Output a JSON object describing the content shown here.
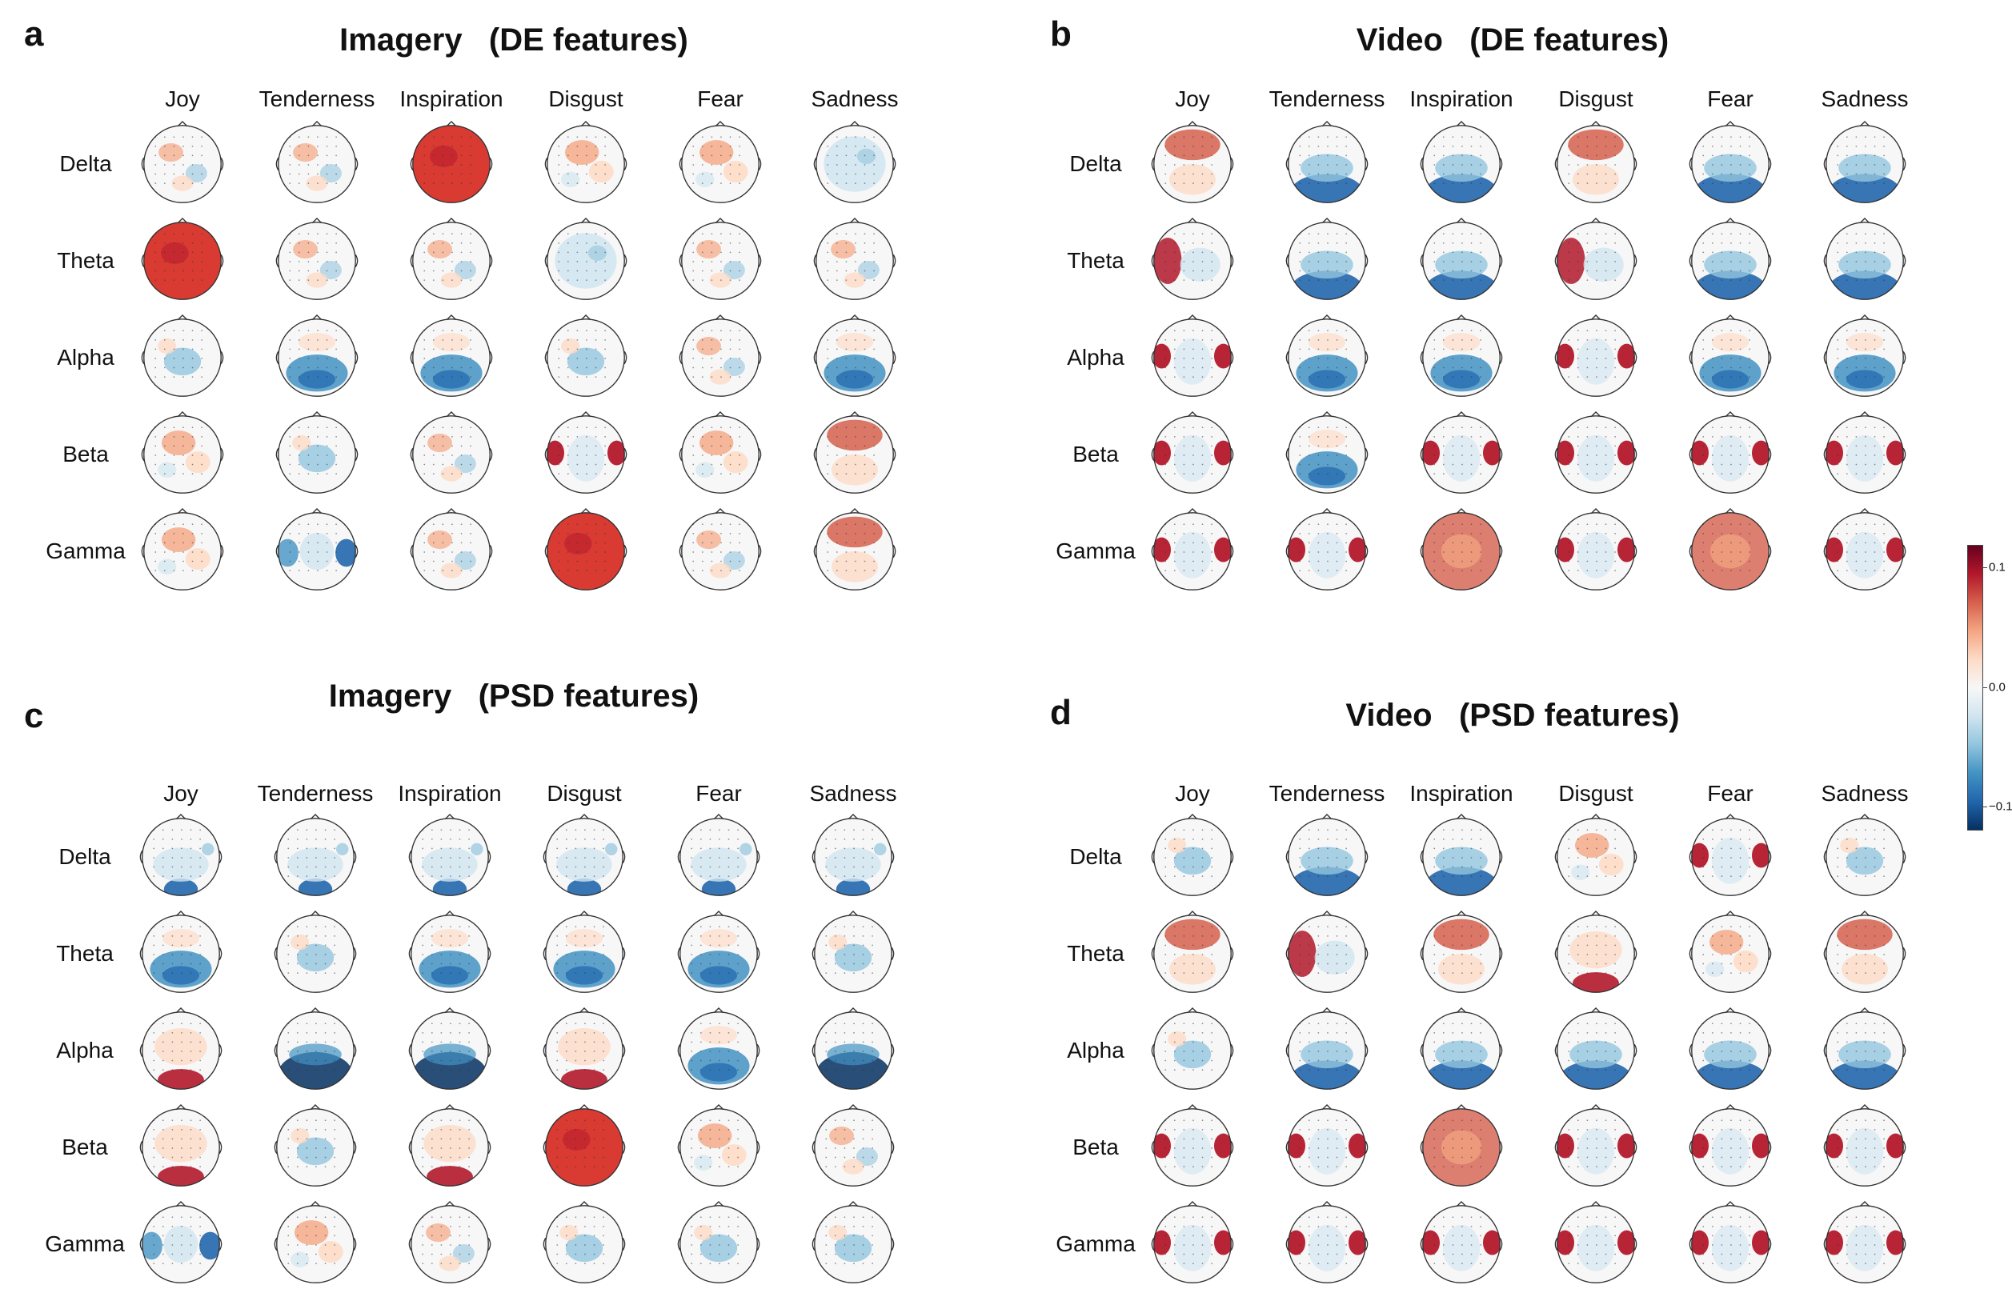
{
  "panels": [
    {
      "letter": "a",
      "title": "Imagery   (DE features)"
    },
    {
      "letter": "b",
      "title": "Video   (DE features)"
    },
    {
      "letter": "c",
      "title": "Imagery   (PSD features)"
    },
    {
      "letter": "d",
      "title": "Video   (PSD features)"
    }
  ],
  "emotions": [
    "Joy",
    "Tenderness",
    "Inspiration",
    "Disgust",
    "Fear",
    "Sadness"
  ],
  "bands": [
    "Delta",
    "Theta",
    "Alpha",
    "Beta",
    "Gamma"
  ],
  "colorbar": {
    "ticks": [
      "0.1",
      "0.0",
      "−0.1"
    ],
    "colors": [
      "#67001f",
      "#f7f7f7",
      "#053061"
    ]
  },
  "maps": [
    [
      [
        "mixed",
        "mixed",
        "strong-red",
        "mixed-red",
        "mixed-red",
        "light-blue"
      ],
      [
        "strong-red",
        "mixed",
        "mixed",
        "light-blue",
        "mixed",
        "mixed"
      ],
      [
        "mixed-blue",
        "blue-center",
        "blue-center",
        "mixed-blue",
        "mixed",
        "blue-center"
      ],
      [
        "mixed-red",
        "mixed-blue",
        "mixed",
        "red-temporal",
        "mixed-red",
        "red-top"
      ],
      [
        "mixed-red",
        "blue-temporal",
        "mixed",
        "strong-red",
        "mixed",
        "red-top"
      ]
    ],
    [
      [
        "red-top",
        "blue-bottom",
        "blue-bottom",
        "red-top",
        "blue-bottom",
        "blue-bottom"
      ],
      [
        "red-left",
        "blue-bottom",
        "blue-bottom",
        "red-left",
        "blue-bottom",
        "blue-bottom"
      ],
      [
        "red-temporal",
        "blue-center",
        "blue-center",
        "red-temporal",
        "blue-center",
        "blue-center"
      ],
      [
        "red-temporal",
        "blue-center",
        "red-temporal",
        "red-temporal",
        "red-temporal",
        "red-temporal"
      ],
      [
        "red-temporal",
        "red-temporal",
        "red-ring",
        "red-temporal",
        "red-ring",
        "red-temporal"
      ]
    ],
    [
      [
        "blue-occipital",
        "blue-occipital",
        "blue-occipital",
        "blue-occipital",
        "blue-occipital",
        "blue-occipital"
      ],
      [
        "blue-center",
        "mixed-blue",
        "blue-center",
        "blue-center",
        "blue-center",
        "mixed-blue"
      ],
      [
        "red-occipital",
        "dark-blue-bottom",
        "dark-blue-bottom",
        "red-occipital",
        "blue-center",
        "dark-blue-bottom"
      ],
      [
        "red-occipital",
        "mixed-blue",
        "red-occipital",
        "strong-red",
        "mixed-red",
        "mixed"
      ],
      [
        "blue-temporal",
        "mixed-red",
        "mixed",
        "mixed-blue",
        "mixed-blue",
        "mixed-blue"
      ]
    ],
    [
      [
        "mixed-blue",
        "blue-bottom",
        "blue-bottom",
        "mixed-red",
        "red-temporal",
        "mixed-blue"
      ],
      [
        "red-top",
        "red-left",
        "red-top",
        "red-occipital",
        "mixed-red",
        "red-top"
      ],
      [
        "mixed-blue",
        "blue-bottom",
        "blue-bottom",
        "blue-bottom",
        "blue-bottom",
        "blue-bottom"
      ],
      [
        "red-temporal",
        "red-temporal",
        "red-ring",
        "red-temporal",
        "red-temporal",
        "red-temporal"
      ],
      [
        "red-temporal",
        "red-temporal",
        "red-temporal",
        "red-temporal",
        "red-temporal",
        "red-temporal"
      ]
    ]
  ]
}
